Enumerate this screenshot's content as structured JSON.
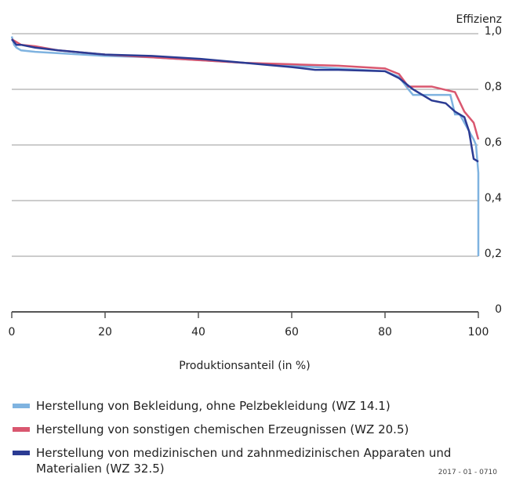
{
  "chart_data": {
    "type": "line",
    "y_label": "Effizienz",
    "x_label": "Produktionsanteil (in %)",
    "xlim": [
      0,
      100
    ],
    "xticks": [
      0,
      20,
      40,
      60,
      80,
      100
    ],
    "ylim": [
      0,
      1.0
    ],
    "yticks": [
      0,
      {
        "value": 0.2,
        "label": "0,2"
      },
      {
        "value": 0.4,
        "label": "0,4"
      },
      {
        "value": 0.6,
        "label": "0,6"
      },
      {
        "value": 0.8,
        "label": "0,8"
      },
      {
        "value": 1.0,
        "label": "1,0"
      }
    ],
    "grid": true,
    "series": [
      {
        "name": "Herstellung von Bekleidung, ohne Pelzbekleidung (WZ 14.1)",
        "color": "#7fb3e0",
        "x": [
          0,
          0.5,
          1,
          2,
          5,
          10,
          20,
          30,
          40,
          50,
          60,
          70,
          75,
          80,
          83,
          85,
          86,
          90,
          94,
          95,
          96,
          98,
          99,
          99.5,
          100,
          100
        ],
        "values": [
          0.99,
          0.96,
          0.95,
          0.94,
          0.935,
          0.93,
          0.92,
          0.915,
          0.905,
          0.895,
          0.885,
          0.875,
          0.87,
          0.865,
          0.845,
          0.8,
          0.78,
          0.78,
          0.78,
          0.71,
          0.71,
          0.65,
          0.62,
          0.6,
          0.5,
          0.2
        ]
      },
      {
        "name": "Herstellung von sonstigen chemischen Erzeugnissen (WZ 20.5)",
        "color": "#d9576f",
        "x": [
          0,
          2,
          5,
          10,
          20,
          30,
          40,
          50,
          60,
          70,
          80,
          83,
          85,
          90,
          95,
          97,
          99,
          100
        ],
        "values": [
          0.98,
          0.96,
          0.955,
          0.94,
          0.925,
          0.915,
          0.905,
          0.895,
          0.89,
          0.885,
          0.875,
          0.855,
          0.81,
          0.81,
          0.79,
          0.72,
          0.68,
          0.62
        ]
      },
      {
        "name": "Herstellung von medizinischen und zahnmedizinischen Apparaten und Materialien (WZ 32.5)",
        "color": "#2b3b93",
        "x": [
          0,
          1,
          2,
          5,
          10,
          20,
          30,
          40,
          50,
          60,
          65,
          70,
          80,
          83,
          86,
          90,
          93,
          95,
          97,
          98,
          99,
          100
        ],
        "values": [
          0.98,
          0.96,
          0.96,
          0.95,
          0.94,
          0.925,
          0.92,
          0.91,
          0.895,
          0.88,
          0.87,
          0.87,
          0.865,
          0.84,
          0.8,
          0.76,
          0.75,
          0.72,
          0.7,
          0.65,
          0.55,
          0.54
        ]
      }
    ],
    "note": "2017 - 01 - 0710"
  }
}
